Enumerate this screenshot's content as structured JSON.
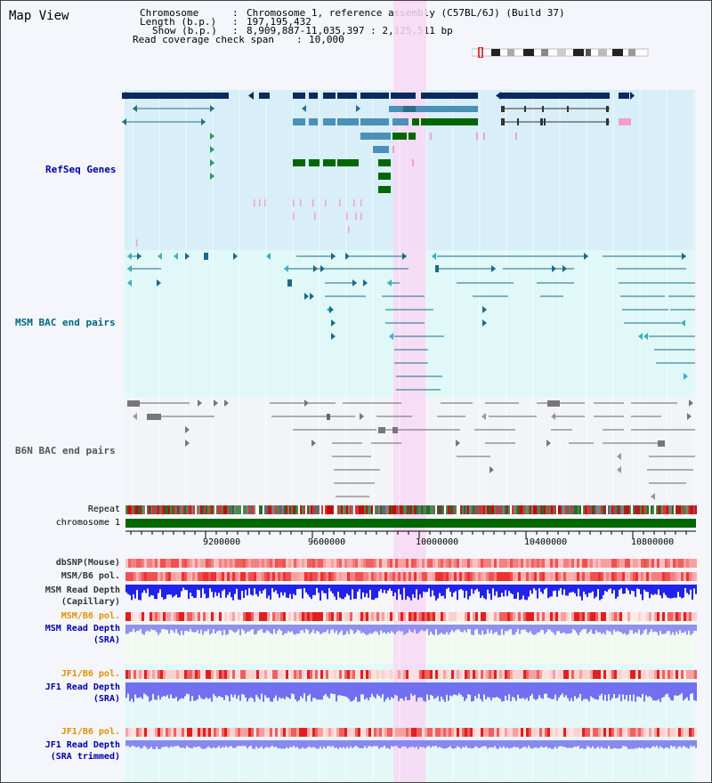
{
  "title": "Map View",
  "info": {
    "chromosome_label": "Chromosome",
    "chromosome_value": "Chromosome 1, reference assembly (C57BL/6J) (Build 37)",
    "length_label": "Length (b.p.)",
    "length_value": "197,195,432",
    "show_label": "Show (b.p.)",
    "show_value": "8,909,887-11,035,397 : 2,125,511 bp",
    "coverage_label": "Read coverage check span",
    "coverage_value": "10,000"
  },
  "tracks": {
    "refseq": "RefSeq Genes",
    "msm_bac": "MSM BAC end pairs",
    "b6n_bac": "B6N BAC end pairs",
    "repeat": "Repeat",
    "chromosome": "chromosome 1",
    "dbsnp": "dbSNP(Mouse)",
    "msm_b6_pol": "MSM/B6 pol.",
    "msm_read_depth_cap_1": "MSM Read Depth",
    "msm_read_depth_cap_2": "(Capillary)",
    "msm_b6_pol_2": "MSM/B6 pol.",
    "msm_read_depth_sra_1": "MSM Read Depth",
    "msm_read_depth_sra_2": "(SRA)",
    "jf1_b6_pol": "JF1/B6 pol.",
    "jf1_read_depth_sra_1": "JF1 Read Depth",
    "jf1_read_depth_sra_2": "(SRA)",
    "jf1_b6_pol_2": "JF1/B6 pol.",
    "jf1_read_depth_trim_1": "JF1 Read Depth",
    "jf1_read_depth_trim_2": "(SRA trimmed)"
  },
  "axis": {
    "ticks": [
      "9200000",
      "9600000",
      "10000000",
      "10400000",
      "10800000"
    ]
  },
  "colors": {
    "refseq_bg": "#d8eef8",
    "msm_bg": "#e0f8f8",
    "b6n_bg": "#f2f4f8",
    "highlight": "#f8d8f4",
    "label_blue": "#0000aa",
    "label_teal": "#006680",
    "label_gray": "#555555",
    "label_orange": "#e09000",
    "gene_dark": "#0b2a5c",
    "gene_mid": "#4a90b8",
    "gene_green": "#006600",
    "chromosome_green": "#006600"
  }
}
